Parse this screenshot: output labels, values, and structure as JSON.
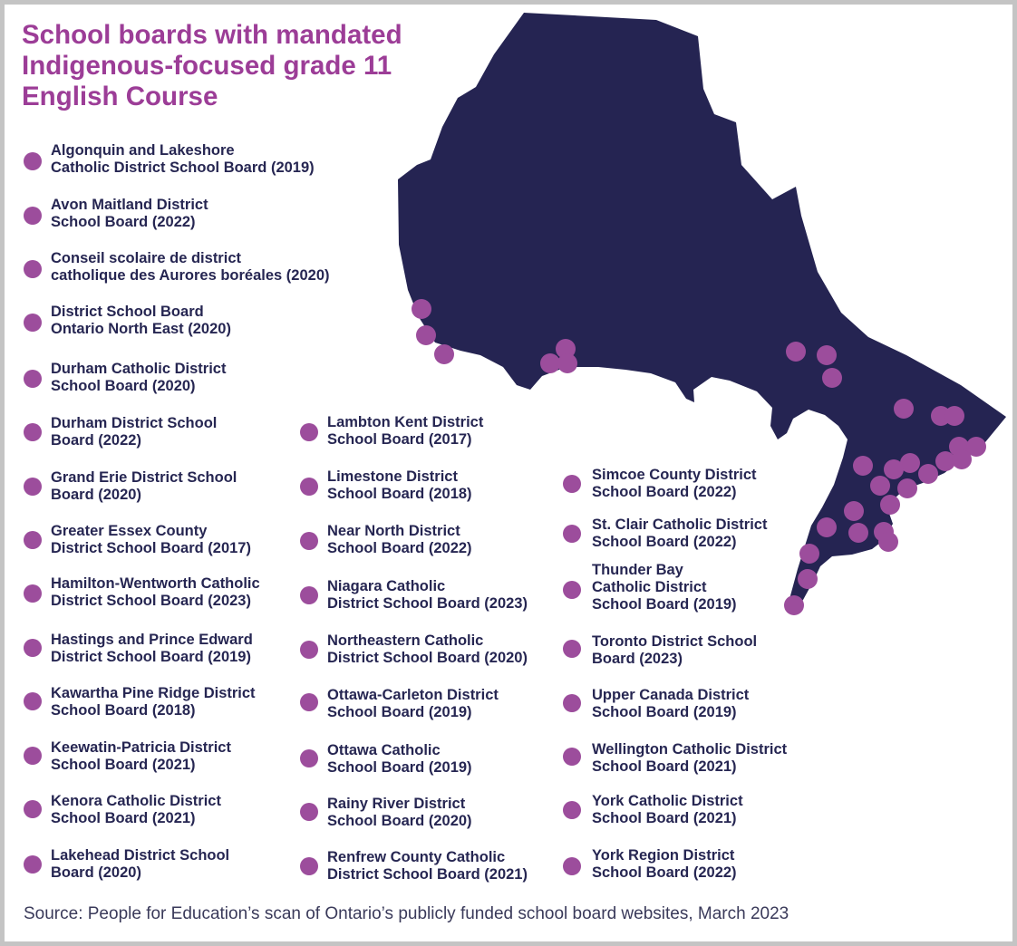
{
  "title_lines": [
    "School boards with mandated",
    "Indigenous-focused grade 11",
    "English Course"
  ],
  "colors": {
    "title": "#9c3d97",
    "map_fill": "#252452",
    "marker": "#9c4d9c",
    "text": "#262652",
    "border": "#c4c4c4"
  },
  "legend": {
    "col1": [
      {
        "line1": "Algonquin and Lakeshore",
        "line2": "Catholic District School Board (2019)"
      },
      {
        "line1": "Avon Maitland District",
        "line2": "School Board (2022)"
      },
      {
        "line1": "Conseil scolaire de district",
        "line2": "catholique des Aurores boréales (2020)"
      },
      {
        "line1": "District School Board",
        "line2": "Ontario North East (2020)"
      },
      {
        "line1": "Durham Catholic District",
        "line2": "School Board (2020)"
      },
      {
        "line1": "Durham District School",
        "line2": "Board (2022)"
      },
      {
        "line1": "Grand Erie District School",
        "line2": "Board (2020)"
      },
      {
        "line1": "Greater Essex County",
        "line2": "District School Board (2017)"
      },
      {
        "line1": "Hamilton-Wentworth Catholic",
        "line2": "District School Board (2023)"
      },
      {
        "line1": "Hastings and Prince Edward",
        "line2": "District School Board (2019)"
      },
      {
        "line1": "Kawartha Pine Ridge District",
        "line2": "School Board (2018)"
      },
      {
        "line1": "Keewatin-Patricia District",
        "line2": "School Board (2021)"
      },
      {
        "line1": "Kenora Catholic District",
        "line2": "School Board (2021)"
      },
      {
        "line1": "Lakehead District School",
        "line2": "Board (2020)"
      }
    ],
    "col2": [
      {
        "line1": "Lambton Kent District",
        "line2": "School Board (2017)"
      },
      {
        "line1": "Limestone District",
        "line2": "School Board (2018)"
      },
      {
        "line1": "Near North District",
        "line2": "School Board (2022)"
      },
      {
        "line1": "Niagara Catholic",
        "line2": "District School Board (2023)"
      },
      {
        "line1": "Northeastern Catholic",
        "line2": "District School Board (2020)"
      },
      {
        "line1": "Ottawa-Carleton District",
        "line2": "School Board (2019)"
      },
      {
        "line1": "Ottawa Catholic",
        "line2": "School Board (2019)"
      },
      {
        "line1": "Rainy River District",
        "line2": "School Board (2020)"
      },
      {
        "line1": "Renfrew County Catholic",
        "line2": "District School Board (2021)"
      }
    ],
    "col3": [
      {
        "line1": "Simcoe County District",
        "line2": "School Board (2022)"
      },
      {
        "line1": "St. Clair Catholic District",
        "line2": "School Board (2022)"
      },
      {
        "line1": "Thunder Bay",
        "line2": "Catholic District",
        "line3": "School Board (2019)"
      },
      {
        "line1": "Toronto District School",
        "line2": "Board (2023)"
      },
      {
        "line1": "Upper Canada District",
        "line2": "School Board (2019)"
      },
      {
        "line1": "Wellington Catholic District",
        "line2": "School Board (2021)"
      },
      {
        "line1": "York Catholic District",
        "line2": "School Board (2021)"
      },
      {
        "line1": "York Region District",
        "line2": "School Board (2022)"
      }
    ]
  },
  "source": "Source: People for Education’s scan of Ontario’s publicly funded school board websites, March 2023"
}
